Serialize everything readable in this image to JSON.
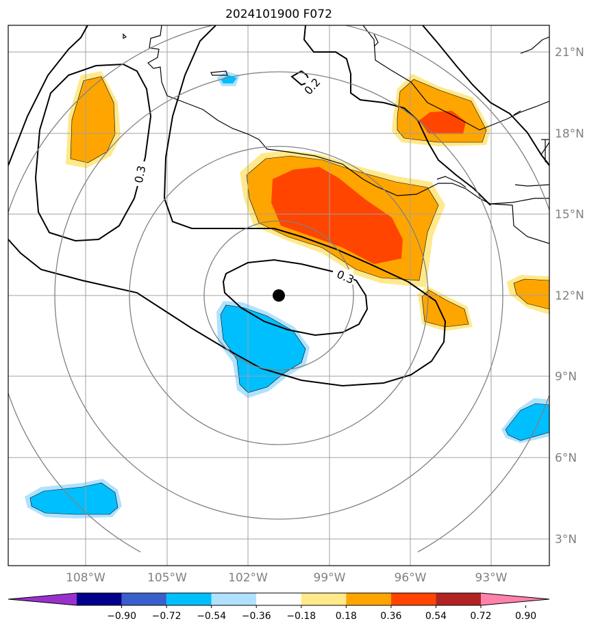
{
  "title": "2024101900 F072",
  "longitude_labels": [
    "108°W",
    "105°W",
    "102°W",
    "99°W",
    "96°W",
    "93°W"
  ],
  "latitude_labels": [
    "21°N",
    "18°N",
    "15°N",
    "12°N",
    "9°N",
    "6°N",
    "3°N"
  ],
  "contour_labels": [
    "0.3",
    "0.3",
    "0.2"
  ],
  "colorbar": {
    "ticks": [
      "−0.90",
      "−0.72",
      "−0.54",
      "−0.36",
      "−0.18",
      "0.18",
      "0.36",
      "0.54",
      "0.72",
      "0.90"
    ],
    "colors": [
      "#9932cc",
      "#00008b",
      "#3a5fcd",
      "#00bfff",
      "#b0e2ff",
      "#ffffff",
      "#ffe98a",
      "#ffa500",
      "#ff4500",
      "#b22222",
      "#ff82ab"
    ]
  },
  "colors": {
    "negative_strong": "#00bfff",
    "negative_weak": "#b0e2ff",
    "positive_weak": "#ffe98a",
    "positive_mid": "#ffa500",
    "positive_strong": "#ff4500",
    "grid": "#a0a0a0",
    "range_rings": "#808080"
  },
  "storm_center": {
    "lon": "101°W",
    "lat": "12°N"
  }
}
